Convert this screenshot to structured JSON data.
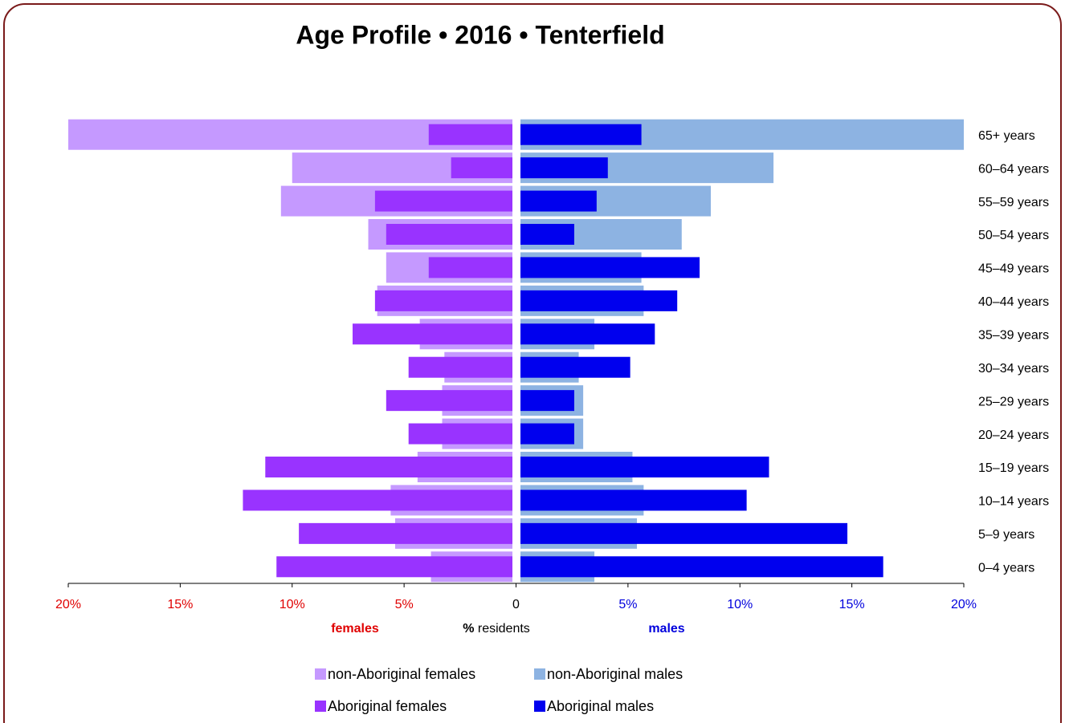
{
  "chart_data": {
    "type": "pyramid",
    "title": "Age Profile  •  2016  •  Tenterfield",
    "categories": [
      "65+ years",
      "60–64 years",
      "55–59 years",
      "50–54 years",
      "45–49 years",
      "40–44 years",
      "35–39 years",
      "30–34 years",
      "25–29 years",
      "20–24 years",
      "15–19 years",
      "10–14 years",
      "5–9 years",
      "0–4 years"
    ],
    "series": [
      {
        "name": "non-Aboriginal females",
        "color": "#c599ff",
        "side": "left",
        "bar": "wide",
        "values": [
          20.0,
          10.0,
          10.5,
          6.6,
          5.8,
          6.2,
          4.3,
          3.2,
          3.3,
          3.3,
          4.4,
          5.6,
          5.4,
          3.8
        ]
      },
      {
        "name": "non-Aboriginal males",
        "color": "#8db3e2",
        "side": "right",
        "bar": "wide",
        "values": [
          20.0,
          11.5,
          8.7,
          7.4,
          5.6,
          5.7,
          3.5,
          2.8,
          3.0,
          3.0,
          5.2,
          5.7,
          5.4,
          3.5
        ]
      },
      {
        "name": "Aboriginal females",
        "color": "#9933ff",
        "side": "left",
        "bar": "narrow",
        "values": [
          3.9,
          2.9,
          6.3,
          5.8,
          3.9,
          6.3,
          7.3,
          4.8,
          5.8,
          4.8,
          11.2,
          12.2,
          9.7,
          10.7
        ]
      },
      {
        "name": "Aboriginal males",
        "color": "#0000ee",
        "side": "right",
        "bar": "narrow",
        "values": [
          5.6,
          4.1,
          3.6,
          2.6,
          8.2,
          7.2,
          6.2,
          5.1,
          2.6,
          2.6,
          11.3,
          10.3,
          14.8,
          16.4
        ]
      }
    ],
    "xlim": [
      -20,
      20
    ],
    "xticks": [
      {
        "value": -20,
        "label": "20%"
      },
      {
        "value": -15,
        "label": "15%"
      },
      {
        "value": -10,
        "label": "10%"
      },
      {
        "value": -5,
        "label": "5%"
      },
      0,
      {
        "value": 5,
        "label": "5%"
      },
      {
        "value": 10,
        "label": "10%"
      },
      {
        "value": 15,
        "label": "15%"
      },
      {
        "value": 20,
        "label": "20%"
      }
    ],
    "left_label": "females",
    "x_label_symbol": "%",
    "x_label": "residents",
    "right_label": "males",
    "left_color": "#e00000",
    "right_color": "#0000dd"
  }
}
